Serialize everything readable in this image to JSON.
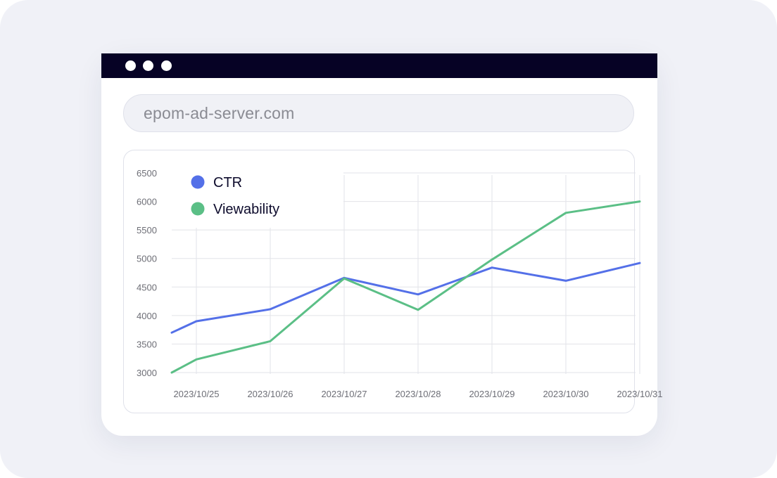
{
  "browser": {
    "address": "epom-ad-server.com"
  },
  "colors": {
    "ctr": "#5470e8",
    "viewability": "#5bbf86",
    "titlebar": "#060225"
  },
  "chart_data": {
    "type": "line",
    "x": [
      "2023/10/25",
      "2023/10/26",
      "2023/10/27",
      "2023/10/28",
      "2023/10/29",
      "2023/10/30",
      "2023/10/31"
    ],
    "x_start_value": 3700,
    "series": [
      {
        "name": "CTR",
        "start": 3700,
        "values": [
          3900,
          4110,
          4660,
          4370,
          4840,
          4610,
          4920
        ]
      },
      {
        "name": "Viewability",
        "start": 3000,
        "values": [
          3230,
          3550,
          4650,
          4100,
          4980,
          5800,
          6000
        ]
      }
    ],
    "yticks": [
      "6500",
      "6000",
      "5500",
      "5000",
      "4500",
      "4000",
      "3500",
      "3000"
    ],
    "ylim": [
      3000,
      6500
    ],
    "grid": true,
    "legend": "top-left"
  }
}
